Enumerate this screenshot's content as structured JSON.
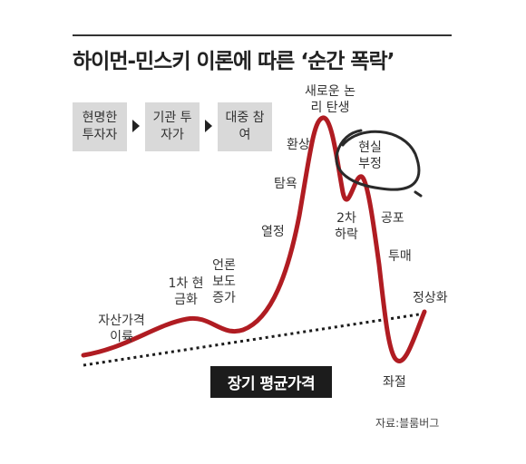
{
  "chart_data": {
    "type": "line",
    "title": "하이먼-민스키 이론에 따른 ‘순간 폭락’",
    "stages": [
      "현명한 투자자",
      "기관 투자가",
      "대중 참여"
    ],
    "phases": [
      {
        "label": "자산가격 이륙"
      },
      {
        "label": "1차 현금화"
      },
      {
        "label": "언론 보도 증가"
      },
      {
        "label": "열정"
      },
      {
        "label": "탐욕"
      },
      {
        "label": "환상"
      },
      {
        "label": "새로운 논리 탄생"
      },
      {
        "label": "현실 부정"
      },
      {
        "label": "2차 하락"
      },
      {
        "label": "공포"
      },
      {
        "label": "투매"
      },
      {
        "label": "좌절"
      },
      {
        "label": "정상화"
      }
    ],
    "series": [
      {
        "color": "#b01c22"
      },
      {
        "name": "장기 평균가격",
        "color": "#1c1c1c",
        "style": "dotted"
      }
    ],
    "source": "자료:블룸버그"
  }
}
